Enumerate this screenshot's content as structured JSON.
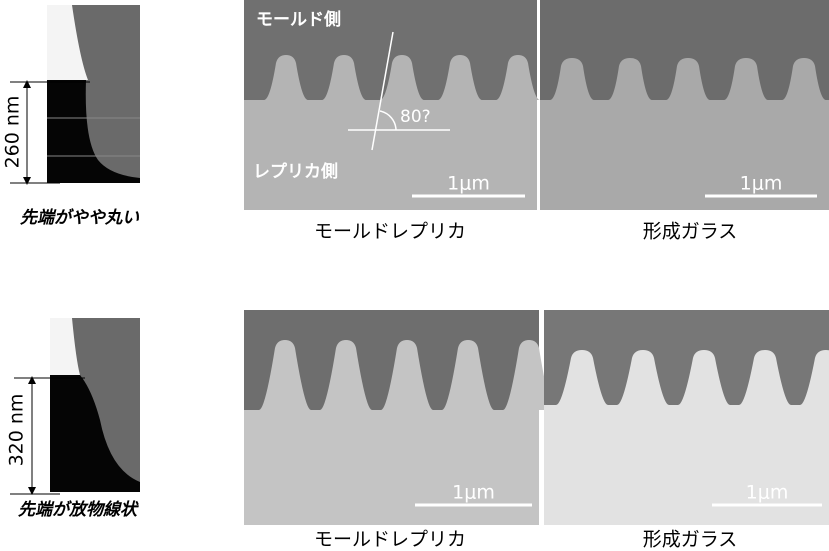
{
  "rows": [
    {
      "profile": {
        "dimension": "260 nm",
        "caption": "先端がやや丸い"
      },
      "panels": [
        {
          "overlay_top": "モールド側",
          "angle": "80?",
          "overlay_bottom": "レプリカ側",
          "scale": "1μm",
          "caption": "モールドレプリカ"
        },
        {
          "scale": "1μm",
          "caption": "形成ガラス"
        }
      ]
    },
    {
      "profile": {
        "dimension": "320 nm",
        "caption": "先端が放物線状"
      },
      "panels": [
        {
          "scale": "1μm",
          "caption": "モールドレプリカ"
        },
        {
          "scale": "1μm",
          "caption": "形成ガラス"
        }
      ]
    }
  ]
}
